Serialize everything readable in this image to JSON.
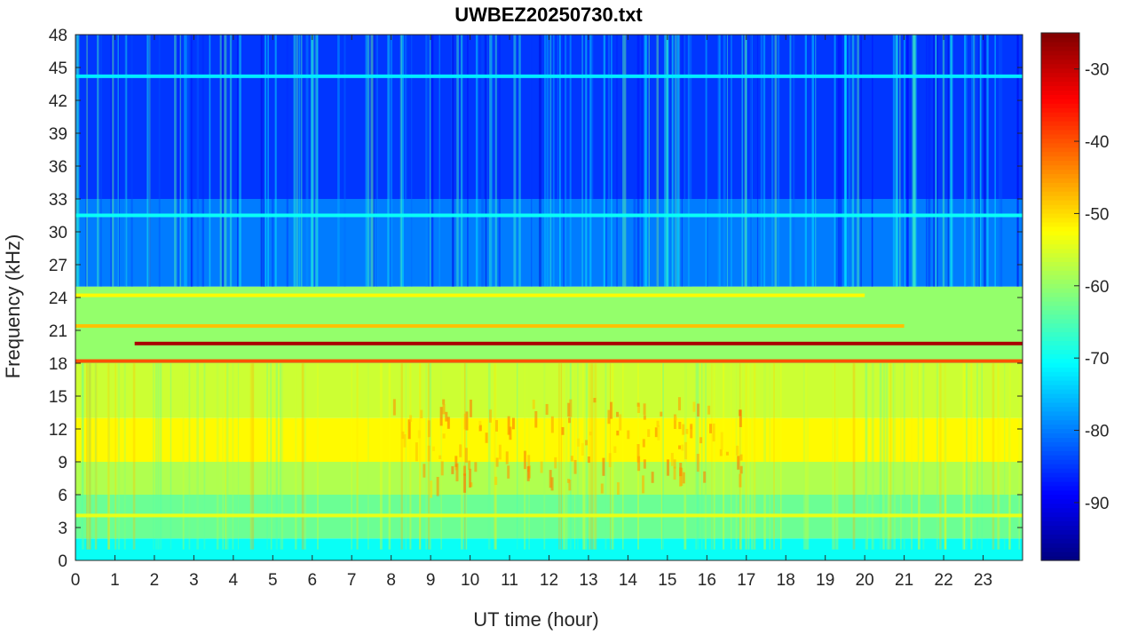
{
  "chart_data": {
    "type": "heatmap",
    "title": "UWBEZ20250730.txt",
    "xlabel": "UT time (hour)",
    "ylabel": "Frequency (kHz)",
    "xlim": [
      0,
      24
    ],
    "ylim": [
      0,
      48
    ],
    "xticks": [
      0,
      1,
      2,
      3,
      4,
      5,
      6,
      7,
      8,
      9,
      10,
      11,
      12,
      13,
      14,
      15,
      16,
      17,
      18,
      19,
      20,
      21,
      22,
      23
    ],
    "yticks": [
      0,
      3,
      6,
      9,
      12,
      15,
      18,
      21,
      24,
      27,
      30,
      33,
      36,
      39,
      42,
      45,
      48
    ],
    "colorbar": {
      "colormap": "jet",
      "clim": [
        -98,
        -25
      ],
      "ticks": [
        -90,
        -80,
        -70,
        -60,
        -50,
        -40,
        -30
      ]
    },
    "background_by_frequency": [
      {
        "freq_khz": [
          0,
          2
        ],
        "level_db": -70
      },
      {
        "freq_khz": [
          2,
          6
        ],
        "level_db": -63
      },
      {
        "freq_khz": [
          6,
          9
        ],
        "level_db": -58
      },
      {
        "freq_khz": [
          9,
          13
        ],
        "level_db": -52
      },
      {
        "freq_khz": [
          13,
          18
        ],
        "level_db": -56
      },
      {
        "freq_khz": [
          18,
          25
        ],
        "level_db": -60
      },
      {
        "freq_khz": [
          25,
          33
        ],
        "level_db": -80
      },
      {
        "freq_khz": [
          33,
          48
        ],
        "level_db": -85
      }
    ],
    "narrowband_lines": [
      {
        "freq_khz": 19.8,
        "t_start": 1.5,
        "t_end": 24,
        "level_db": -28
      },
      {
        "freq_khz": 18.2,
        "t_start": 0,
        "t_end": 24,
        "level_db": -40
      },
      {
        "freq_khz": 21.4,
        "t_start": 0,
        "t_end": 21,
        "level_db": -48
      },
      {
        "freq_khz": 24.2,
        "t_start": 0,
        "t_end": 20,
        "level_db": -52
      },
      {
        "freq_khz": 4.1,
        "t_start": 0,
        "t_end": 24,
        "level_db": -54
      },
      {
        "freq_khz": 31.5,
        "t_start": 0,
        "t_end": 24,
        "level_db": -70
      },
      {
        "freq_khz": 44.2,
        "t_start": 0,
        "t_end": 24,
        "level_db": -72
      }
    ]
  }
}
